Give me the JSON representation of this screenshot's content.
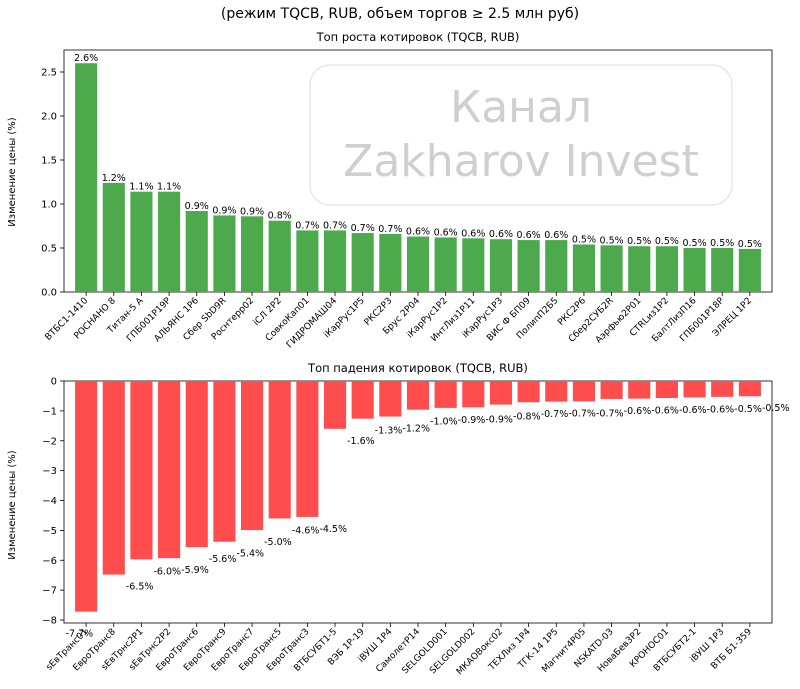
{
  "suptitle": "(режим TQCB, RUB, объем торгов ≥ 2.5 млн руб)",
  "watermark": {
    "line1": "Канал",
    "line2": "Zakharov Invest"
  },
  "chart_data": [
    {
      "type": "bar",
      "title": "Топ роста котировок (TQCB, RUB)",
      "ylabel": "Изменение цены (%)",
      "xlabel": "",
      "ylim": [
        0,
        2.75
      ],
      "yticks": [
        0.0,
        0.5,
        1.0,
        1.5,
        2.0,
        2.5
      ],
      "tick_labels": [
        "0.0",
        "0.5",
        "1.0",
        "1.5",
        "2.0",
        "2.5"
      ],
      "color": "#4caa4c",
      "grid": false,
      "categories": [
        "ВТБС1-1410",
        "РОСНАНО 8",
        "Титан-5 А",
        "ГПБ001Р19Р",
        "АЛЬЯНС 1Р6",
        "Сбер SbD9R",
        "Роснтерр02",
        "iСЛ 2Р2",
        "СовкоКап01",
        "ГИДРОМАШ04",
        "iКарРус1Р5",
        "РКС2Р3",
        "Брус 2Р04",
        "iКарРус1Р2",
        "ИнтЛиз1Р11",
        "iКарРус1Р3",
        "ВИС Ф БП09",
        "ПолипП2Б5",
        "РКС2Р6",
        "Сбер2СУБ2R",
        "Аэрфью2Р01",
        "CTRLиз1Р2",
        "БалтЛизП16",
        "ГПБ001Р18Р",
        "ЭЛРЕЦ 1Р2"
      ],
      "values": [
        2.6,
        1.24,
        1.14,
        1.14,
        0.92,
        0.87,
        0.86,
        0.81,
        0.7,
        0.7,
        0.67,
        0.66,
        0.63,
        0.62,
        0.61,
        0.6,
        0.59,
        0.59,
        0.54,
        0.53,
        0.52,
        0.52,
        0.5,
        0.5,
        0.49
      ],
      "data_labels": [
        "2.6%",
        "1.2%",
        "1.1%",
        "1.1%",
        "0.9%",
        "0.9%",
        "0.9%",
        "0.8%",
        "0.7%",
        "0.7%",
        "0.7%",
        "0.7%",
        "0.6%",
        "0.6%",
        "0.6%",
        "0.6%",
        "0.6%",
        "0.6%",
        "0.5%",
        "0.5%",
        "0.5%",
        "0.5%",
        "0.5%",
        "0.5%",
        "0.5%"
      ]
    },
    {
      "type": "bar",
      "title": "Топ падения котировок (TQCB, RUB)",
      "ylabel": "Изменение цены (%)",
      "xlabel": "",
      "ylim": [
        -8.1,
        0
      ],
      "yticks": [
        0,
        -1,
        -2,
        -3,
        -4,
        -5,
        -6,
        -7,
        -8
      ],
      "tick_labels": [
        "0",
        "−1",
        "−2",
        "−3",
        "−4",
        "−5",
        "−6",
        "−7",
        "−8"
      ],
      "color": "#ff4d4d",
      "grid": false,
      "categories": [
        "sЕвТранс01",
        "ЕвроТранс8",
        "sЕвТрнс2Р1",
        "sЕвТрнс2Р2",
        "ЕвроТранс6",
        "ЕвроТранс9",
        "ЕвроТранс7",
        "ЕвроТранс5",
        "ЕвроТранс3",
        "ВТБСУБТ1-5",
        "ВЭБ 1Р-19",
        "iВУШ 1Р4",
        "СамолетР14",
        "SELGOLD001",
        "SELGOLD002",
        "МКАОВокс02",
        "ТЕХЛиз 1Р4",
        "ТГК-14 1Р5",
        "Магнит4Р05",
        "NSKATD-03",
        "НоваБев3Р2",
        "КРОНОС01",
        "ВТБСУБТ2-1",
        "iВУШ 1Р3",
        "ВТБ Б1-359"
      ],
      "values": [
        -7.72,
        -6.48,
        -5.97,
        -5.93,
        -5.56,
        -5.38,
        -4.99,
        -4.6,
        -4.55,
        -1.6,
        -1.26,
        -1.19,
        -0.96,
        -0.9,
        -0.88,
        -0.79,
        -0.71,
        -0.69,
        -0.68,
        -0.6,
        -0.59,
        -0.57,
        -0.55,
        -0.53,
        -0.51
      ],
      "data_labels": [
        "-7.7%",
        "-6.5%",
        "-6.0%",
        "-5.9%",
        "-5.6%",
        "-5.4%",
        "-5.0%",
        "-4.6%",
        "-4.5%",
        "-1.6%",
        "-1.3%",
        "-1.2%",
        "-1.0%",
        "-0.9%",
        "-0.9%",
        "-0.8%",
        "-0.7%",
        "-0.7%",
        "-0.7%",
        "-0.6%",
        "-0.6%",
        "-0.6%",
        "-0.6%",
        "-0.5%",
        "-0.5%"
      ]
    }
  ]
}
